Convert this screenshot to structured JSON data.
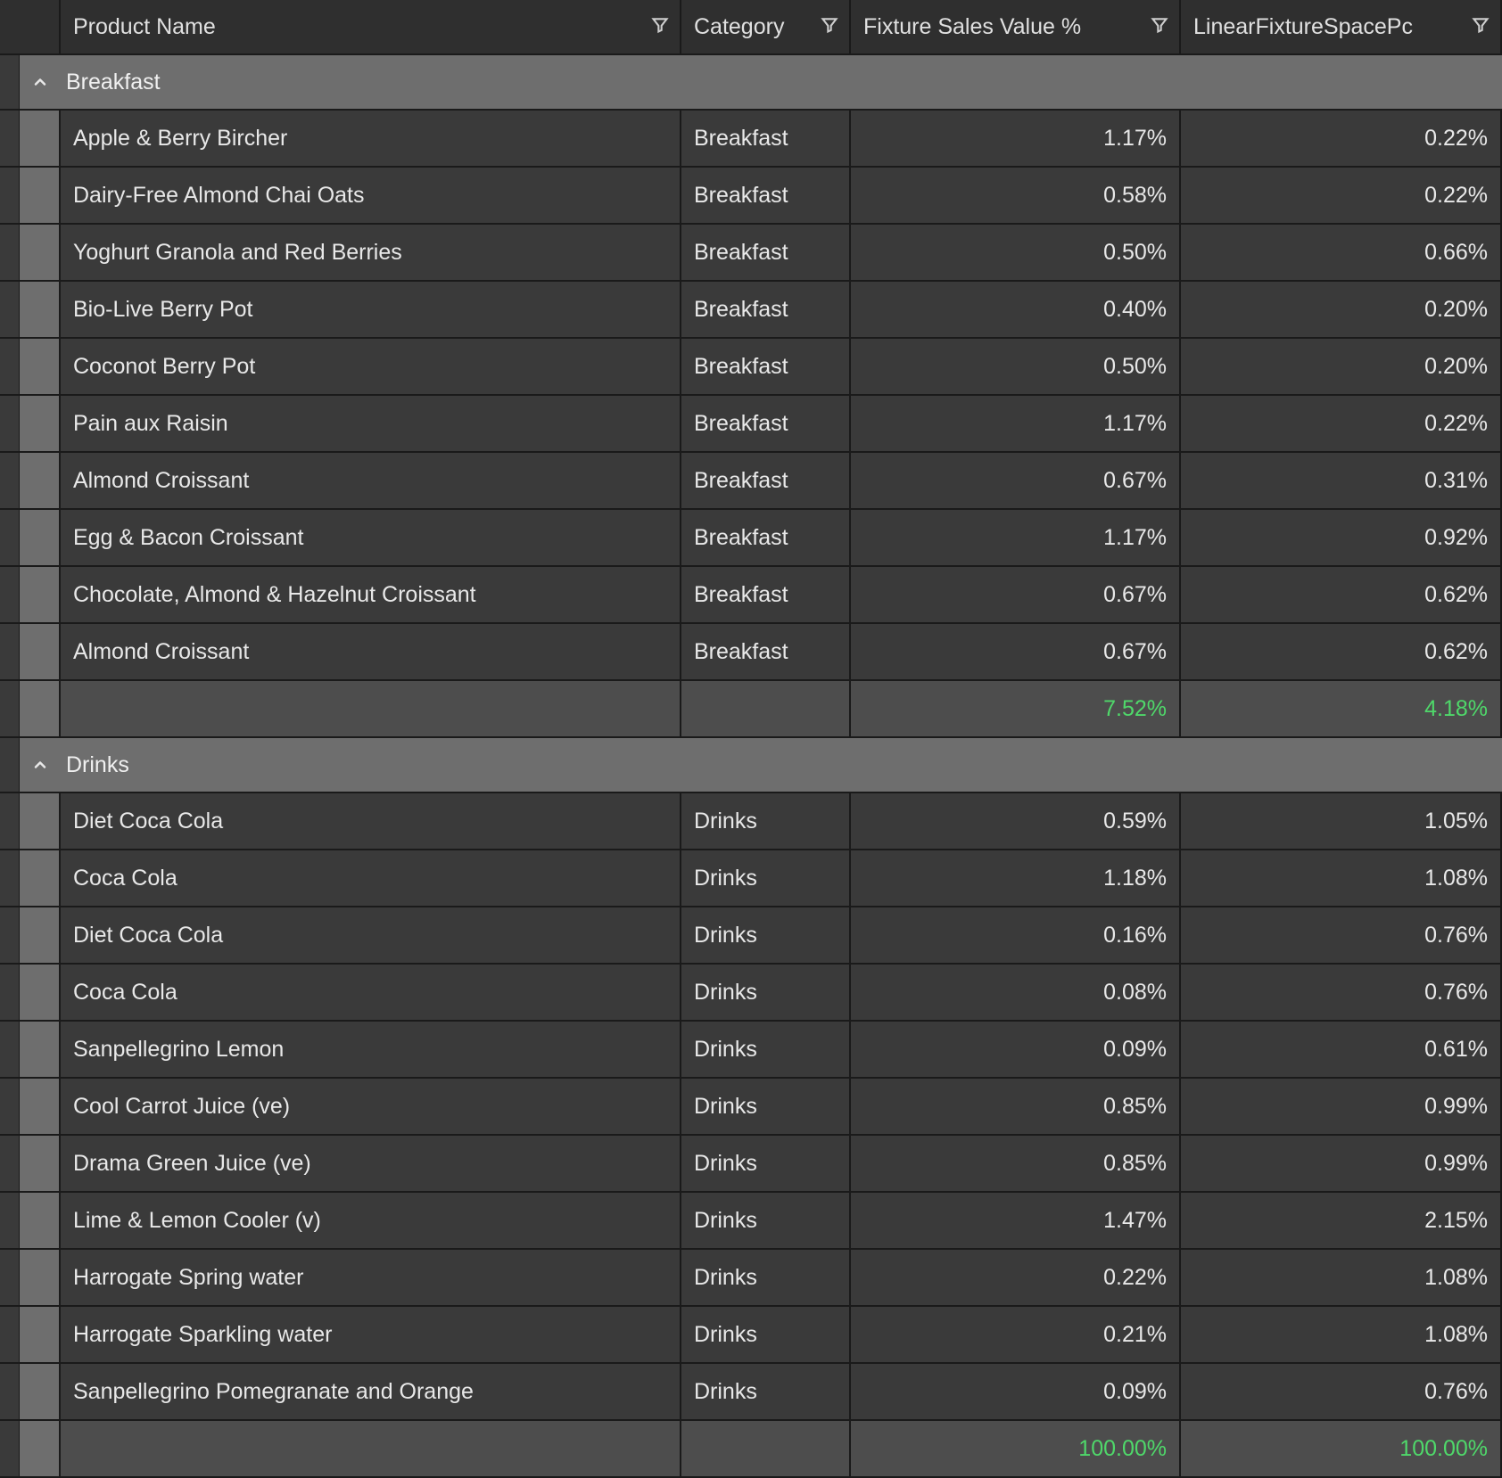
{
  "colors": {
    "page_bg": "#2b2b2b",
    "header_bg": "#2f2f2f",
    "row_bg": "#3a3a3a",
    "subtotal_bg": "#4d4d4d",
    "group_bg": "#6e6e6e",
    "border": "#1a1a1a",
    "text": "#e8e8e8",
    "highlight": "#4fd86a"
  },
  "columns": {
    "product_name": "Product Name",
    "category": "Category",
    "fixture_sales": "Fixture Sales Value %",
    "linear_space": "LinearFixtureSpacePc"
  },
  "groups": [
    {
      "title": "Breakfast",
      "rows": [
        {
          "name": "Apple & Berry Bircher",
          "category": "Breakfast",
          "sales": "1.17%",
          "space": "0.22%"
        },
        {
          "name": "Dairy-Free Almond Chai Oats",
          "category": "Breakfast",
          "sales": "0.58%",
          "space": "0.22%"
        },
        {
          "name": "Yoghurt Granola and Red Berries",
          "category": "Breakfast",
          "sales": "0.50%",
          "space": "0.66%"
        },
        {
          "name": "Bio-Live Berry Pot",
          "category": "Breakfast",
          "sales": "0.40%",
          "space": "0.20%"
        },
        {
          "name": "Coconot Berry Pot",
          "category": "Breakfast",
          "sales": "0.50%",
          "space": "0.20%"
        },
        {
          "name": "Pain aux Raisin",
          "category": "Breakfast",
          "sales": "1.17%",
          "space": "0.22%"
        },
        {
          "name": "Almond Croissant",
          "category": "Breakfast",
          "sales": "0.67%",
          "space": "0.31%"
        },
        {
          "name": "Egg & Bacon Croissant",
          "category": "Breakfast",
          "sales": "1.17%",
          "space": "0.92%"
        },
        {
          "name": "Chocolate, Almond & Hazelnut Croissant",
          "category": "Breakfast",
          "sales": "0.67%",
          "space": "0.62%"
        },
        {
          "name": "Almond Croissant",
          "category": "Breakfast",
          "sales": "0.67%",
          "space": "0.62%"
        }
      ],
      "subtotal": {
        "sales": "7.52%",
        "space": "4.18%"
      }
    },
    {
      "title": "Drinks",
      "rows": [
        {
          "name": "Diet Coca Cola",
          "category": "Drinks",
          "sales": "0.59%",
          "space": "1.05%"
        },
        {
          "name": "Coca Cola",
          "category": "Drinks",
          "sales": "1.18%",
          "space": "1.08%"
        },
        {
          "name": "Diet Coca Cola",
          "category": "Drinks",
          "sales": "0.16%",
          "space": "0.76%"
        },
        {
          "name": "Coca Cola",
          "category": "Drinks",
          "sales": "0.08%",
          "space": "0.76%"
        },
        {
          "name": "Sanpellegrino Lemon",
          "category": "Drinks",
          "sales": "0.09%",
          "space": "0.61%"
        },
        {
          "name": "Cool Carrot Juice (ve)",
          "category": "Drinks",
          "sales": "0.85%",
          "space": "0.99%"
        },
        {
          "name": "Drama Green Juice (ve)",
          "category": "Drinks",
          "sales": "0.85%",
          "space": "0.99%"
        },
        {
          "name": "Lime & Lemon Cooler (v)",
          "category": "Drinks",
          "sales": "1.47%",
          "space": "2.15%"
        },
        {
          "name": "Harrogate Spring water",
          "category": "Drinks",
          "sales": "0.22%",
          "space": "1.08%"
        },
        {
          "name": "Harrogate Sparkling water",
          "category": "Drinks",
          "sales": "0.21%",
          "space": "1.08%"
        },
        {
          "name": "Sanpellegrino Pomegranate and Orange",
          "category": "Drinks",
          "sales": "0.09%",
          "space": "0.76%"
        }
      ],
      "subtotal": null
    }
  ],
  "grand_total": {
    "sales": "100.00%",
    "space": "100.00%"
  }
}
